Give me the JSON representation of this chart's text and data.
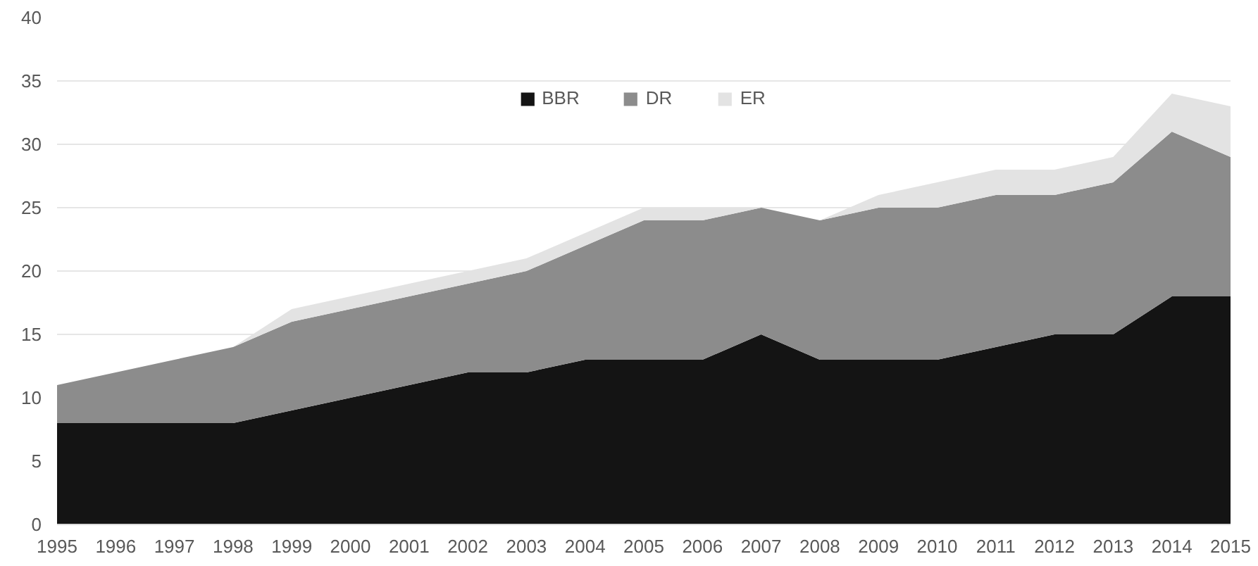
{
  "chart_data": {
    "type": "area",
    "stacked": true,
    "x": [
      1995,
      1996,
      1997,
      1998,
      1999,
      2000,
      2001,
      2002,
      2003,
      2004,
      2005,
      2006,
      2007,
      2008,
      2009,
      2010,
      2011,
      2012,
      2013,
      2014,
      2015
    ],
    "series": [
      {
        "name": "BBR",
        "color": "#141414",
        "values": [
          8,
          8,
          8,
          8,
          9,
          10,
          11,
          12,
          12,
          13,
          13,
          13,
          15,
          13,
          13,
          13,
          14,
          15,
          15,
          18,
          18
        ]
      },
      {
        "name": "DR",
        "color": "#8c8c8c",
        "values": [
          3,
          4,
          5,
          6,
          7,
          7,
          7,
          7,
          8,
          9,
          11,
          11,
          10,
          11,
          12,
          12,
          12,
          11,
          12,
          13,
          11
        ]
      },
      {
        "name": "ER",
        "color": "#e3e3e3",
        "values": [
          0,
          0,
          0,
          0,
          1,
          1,
          1,
          1,
          1,
          1,
          1,
          1,
          0,
          0,
          1,
          2,
          2,
          2,
          2,
          3,
          4
        ]
      }
    ],
    "xlim": [
      1995,
      2015
    ],
    "xticks": [
      1995,
      1996,
      1997,
      1998,
      1999,
      2000,
      2001,
      2002,
      2003,
      2004,
      2005,
      2006,
      2007,
      2008,
      2009,
      2010,
      2011,
      2012,
      2013,
      2014,
      2015
    ],
    "ylim": [
      0,
      40
    ],
    "yticks": [
      0,
      5,
      10,
      15,
      20,
      25,
      30,
      35,
      40
    ],
    "grid": "y",
    "legend": "top"
  }
}
